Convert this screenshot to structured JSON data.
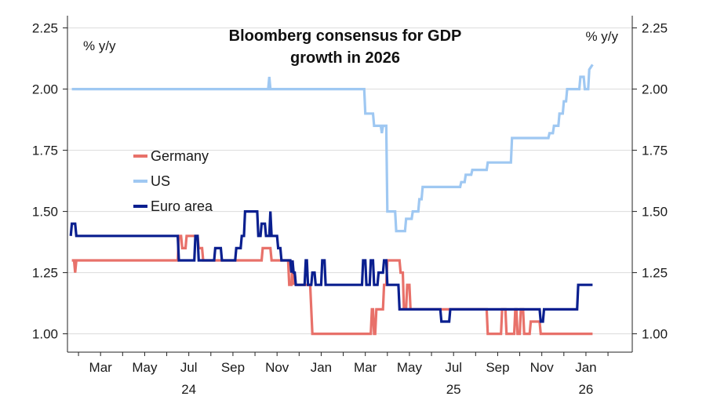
{
  "chart_data": {
    "type": "line",
    "title_lines": [
      "Bloomberg consensus for GDP",
      "growth in 2026"
    ],
    "left_unit": "% y/y",
    "right_unit": "% y/y",
    "ylim": [
      0.925,
      2.3
    ],
    "y_ticks": [
      {
        "value": 1.0,
        "label": "1.00"
      },
      {
        "value": 1.25,
        "label": "1.25"
      },
      {
        "value": 1.5,
        "label": "1.50"
      },
      {
        "value": 1.75,
        "label": "1.75"
      },
      {
        "value": 2.0,
        "label": "2.00"
      },
      {
        "value": 2.25,
        "label": "2.25"
      }
    ],
    "x_range": [
      -1.0,
      24.6
    ],
    "x_ticks": [
      {
        "x": 0.5,
        "label": "Mar"
      },
      {
        "x": 2.5,
        "label": "May"
      },
      {
        "x": 4.5,
        "label": "Jul"
      },
      {
        "x": 6.5,
        "label": "Sep"
      },
      {
        "x": 8.5,
        "label": "Nov"
      },
      {
        "x": 10.5,
        "label": "Jan"
      },
      {
        "x": 12.5,
        "label": "Mar"
      },
      {
        "x": 14.5,
        "label": "May"
      },
      {
        "x": 16.5,
        "label": "Jul"
      },
      {
        "x": 18.5,
        "label": "Sep"
      },
      {
        "x": 20.5,
        "label": "Nov"
      },
      {
        "x": 22.5,
        "label": "Jan"
      }
    ],
    "year_labels": [
      {
        "x": 4.5,
        "label": "24"
      },
      {
        "x": 16.5,
        "label": "25"
      },
      {
        "x": 22.5,
        "label": "26"
      }
    ],
    "legend": [
      {
        "name": "Germany",
        "color": "#e8716a"
      },
      {
        "name": "US",
        "color": "#9fc8f2"
      },
      {
        "name": "Euro area",
        "color": "#0a1f8f"
      }
    ],
    "series": [
      {
        "name": "US",
        "color": "#9fc8f2",
        "points": [
          [
            -0.8,
            2.0
          ],
          [
            8.1,
            2.0
          ],
          [
            8.15,
            2.05
          ],
          [
            8.2,
            2.0
          ],
          [
            12.45,
            2.0
          ],
          [
            12.5,
            1.9
          ],
          [
            12.85,
            1.9
          ],
          [
            12.9,
            1.85
          ],
          [
            13.2,
            1.85
          ],
          [
            13.25,
            1.82
          ],
          [
            13.3,
            1.85
          ],
          [
            13.45,
            1.85
          ],
          [
            13.5,
            1.5
          ],
          [
            13.85,
            1.5
          ],
          [
            13.9,
            1.42
          ],
          [
            14.3,
            1.42
          ],
          [
            14.35,
            1.47
          ],
          [
            14.6,
            1.47
          ],
          [
            14.65,
            1.5
          ],
          [
            14.9,
            1.5
          ],
          [
            14.95,
            1.55
          ],
          [
            15.05,
            1.55
          ],
          [
            15.1,
            1.6
          ],
          [
            16.8,
            1.6
          ],
          [
            16.85,
            1.62
          ],
          [
            17.0,
            1.62
          ],
          [
            17.05,
            1.65
          ],
          [
            17.3,
            1.65
          ],
          [
            17.35,
            1.67
          ],
          [
            18.0,
            1.67
          ],
          [
            18.05,
            1.7
          ],
          [
            19.1,
            1.7
          ],
          [
            19.15,
            1.8
          ],
          [
            20.8,
            1.8
          ],
          [
            20.85,
            1.82
          ],
          [
            21.0,
            1.82
          ],
          [
            21.05,
            1.85
          ],
          [
            21.25,
            1.85
          ],
          [
            21.3,
            1.9
          ],
          [
            21.45,
            1.9
          ],
          [
            21.5,
            1.95
          ],
          [
            21.6,
            1.95
          ],
          [
            21.65,
            2.0
          ],
          [
            22.2,
            2.0
          ],
          [
            22.25,
            2.05
          ],
          [
            22.4,
            2.05
          ],
          [
            22.45,
            2.0
          ],
          [
            22.6,
            2.0
          ],
          [
            22.65,
            2.08
          ],
          [
            22.8,
            2.1
          ]
        ]
      },
      {
        "name": "Germany",
        "color": "#e8716a",
        "points": [
          [
            -0.8,
            1.3
          ],
          [
            -0.7,
            1.3
          ],
          [
            -0.65,
            1.25
          ],
          [
            -0.6,
            1.3
          ],
          [
            4.0,
            1.3
          ],
          [
            4.05,
            1.4
          ],
          [
            4.15,
            1.4
          ],
          [
            4.2,
            1.35
          ],
          [
            4.35,
            1.35
          ],
          [
            4.4,
            1.4
          ],
          [
            4.9,
            1.4
          ],
          [
            4.95,
            1.35
          ],
          [
            5.1,
            1.35
          ],
          [
            5.15,
            1.3
          ],
          [
            7.8,
            1.3
          ],
          [
            7.85,
            1.35
          ],
          [
            8.2,
            1.35
          ],
          [
            8.25,
            1.3
          ],
          [
            9.0,
            1.3
          ],
          [
            9.05,
            1.2
          ],
          [
            9.15,
            1.2
          ],
          [
            9.2,
            1.3
          ],
          [
            9.25,
            1.2
          ],
          [
            9.3,
            1.25
          ],
          [
            9.35,
            1.2
          ],
          [
            10.0,
            1.2
          ],
          [
            10.1,
            1.0
          ],
          [
            12.75,
            1.0
          ],
          [
            12.8,
            1.1
          ],
          [
            12.85,
            1.1
          ],
          [
            12.9,
            1.0
          ],
          [
            12.95,
            1.0
          ],
          [
            13.0,
            1.1
          ],
          [
            13.3,
            1.1
          ],
          [
            13.35,
            1.2
          ],
          [
            13.45,
            1.2
          ],
          [
            13.5,
            1.3
          ],
          [
            14.05,
            1.3
          ],
          [
            14.1,
            1.25
          ],
          [
            14.2,
            1.25
          ],
          [
            14.25,
            1.1
          ],
          [
            14.35,
            1.1
          ],
          [
            14.4,
            1.2
          ],
          [
            14.5,
            1.2
          ],
          [
            14.55,
            1.1
          ],
          [
            18.0,
            1.1
          ],
          [
            18.05,
            1.0
          ],
          [
            18.65,
            1.0
          ],
          [
            18.7,
            1.1
          ],
          [
            18.85,
            1.1
          ],
          [
            18.9,
            1.0
          ],
          [
            19.25,
            1.0
          ],
          [
            19.3,
            1.1
          ],
          [
            19.35,
            1.1
          ],
          [
            19.4,
            1.0
          ],
          [
            19.5,
            1.0
          ],
          [
            19.55,
            1.1
          ],
          [
            19.65,
            1.1
          ],
          [
            19.7,
            1.0
          ],
          [
            19.95,
            1.0
          ],
          [
            20.0,
            1.05
          ],
          [
            20.4,
            1.05
          ],
          [
            20.45,
            1.0
          ],
          [
            22.8,
            1.0
          ]
        ]
      },
      {
        "name": "Euro area",
        "color": "#0a1f8f",
        "points": [
          [
            -0.85,
            1.4
          ],
          [
            -0.8,
            1.45
          ],
          [
            -0.65,
            1.45
          ],
          [
            -0.6,
            1.4
          ],
          [
            4.0,
            1.4
          ],
          [
            4.05,
            1.3
          ],
          [
            4.75,
            1.3
          ],
          [
            4.8,
            1.4
          ],
          [
            4.9,
            1.4
          ],
          [
            4.95,
            1.3
          ],
          [
            5.65,
            1.3
          ],
          [
            5.7,
            1.35
          ],
          [
            5.95,
            1.35
          ],
          [
            6.0,
            1.3
          ],
          [
            6.6,
            1.3
          ],
          [
            6.65,
            1.35
          ],
          [
            6.85,
            1.35
          ],
          [
            6.9,
            1.4
          ],
          [
            7.0,
            1.4
          ],
          [
            7.05,
            1.5
          ],
          [
            7.6,
            1.5
          ],
          [
            7.65,
            1.4
          ],
          [
            7.75,
            1.4
          ],
          [
            7.8,
            1.45
          ],
          [
            7.95,
            1.45
          ],
          [
            8.0,
            1.4
          ],
          [
            8.15,
            1.4
          ],
          [
            8.2,
            1.5
          ],
          [
            8.25,
            1.4
          ],
          [
            8.5,
            1.4
          ],
          [
            8.55,
            1.35
          ],
          [
            8.65,
            1.35
          ],
          [
            8.7,
            1.3
          ],
          [
            9.1,
            1.3
          ],
          [
            9.15,
            1.25
          ],
          [
            9.2,
            1.3
          ],
          [
            9.25,
            1.25
          ],
          [
            9.3,
            1.25
          ],
          [
            9.35,
            1.2
          ],
          [
            9.75,
            1.2
          ],
          [
            9.8,
            1.3
          ],
          [
            9.85,
            1.3
          ],
          [
            9.9,
            1.2
          ],
          [
            10.05,
            1.2
          ],
          [
            10.1,
            1.25
          ],
          [
            10.2,
            1.25
          ],
          [
            10.25,
            1.2
          ],
          [
            10.5,
            1.2
          ],
          [
            10.55,
            1.3
          ],
          [
            10.65,
            1.3
          ],
          [
            10.7,
            1.2
          ],
          [
            12.35,
            1.2
          ],
          [
            12.4,
            1.3
          ],
          [
            12.5,
            1.3
          ],
          [
            12.55,
            1.2
          ],
          [
            12.7,
            1.2
          ],
          [
            12.75,
            1.3
          ],
          [
            12.85,
            1.3
          ],
          [
            12.9,
            1.2
          ],
          [
            13.05,
            1.2
          ],
          [
            13.1,
            1.25
          ],
          [
            13.3,
            1.25
          ],
          [
            13.35,
            1.3
          ],
          [
            13.45,
            1.3
          ],
          [
            13.5,
            1.2
          ],
          [
            14.0,
            1.2
          ],
          [
            14.05,
            1.1
          ],
          [
            15.9,
            1.1
          ],
          [
            15.95,
            1.05
          ],
          [
            16.3,
            1.05
          ],
          [
            16.35,
            1.1
          ],
          [
            18.0,
            1.1
          ],
          [
            18.05,
            1.1
          ],
          [
            20.4,
            1.1
          ],
          [
            20.45,
            1.05
          ],
          [
            20.55,
            1.05
          ],
          [
            20.6,
            1.1
          ],
          [
            22.1,
            1.1
          ],
          [
            22.15,
            1.2
          ],
          [
            22.8,
            1.2
          ]
        ]
      }
    ]
  }
}
